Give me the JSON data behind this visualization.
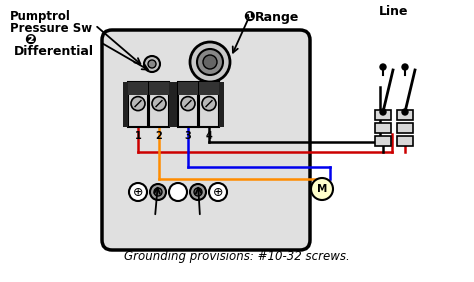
{
  "bg_color": "#ffffff",
  "label_pumptrol_line1": "Pumptrol",
  "label_pumptrol_line2": "Pressure Sw",
  "label_differential": "Differential",
  "label_range": "Range",
  "label_line": "Line",
  "label_ground": "Grounding provisions: #10-32 screws.",
  "terminal_labels": [
    "1",
    "2",
    "3",
    "4"
  ],
  "wire_red": "#cc0000",
  "wire_blue": "#0000ee",
  "wire_orange": "#ff8c00",
  "wire_black": "#000000",
  "box_face": "#e0e0e0",
  "box_edge": "#000000",
  "nut_face": "#aaaaaa",
  "nut_edge": "#000000"
}
